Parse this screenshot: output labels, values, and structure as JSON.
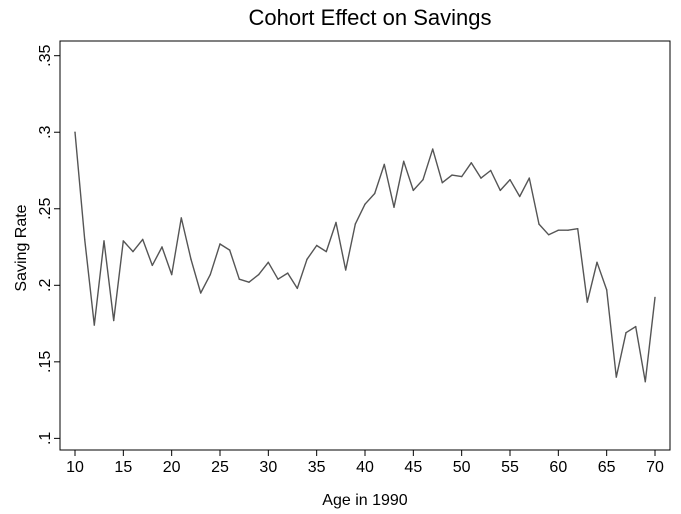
{
  "chart_data": {
    "type": "line",
    "title": "Cohort Effect on Savings",
    "xlabel": "Age in 1990",
    "ylabel": "Saving Rate",
    "xlim": [
      10,
      70
    ],
    "ylim": [
      0.1,
      0.35
    ],
    "xticks": [
      10,
      15,
      20,
      25,
      30,
      35,
      40,
      45,
      50,
      55,
      60,
      65,
      70
    ],
    "xtick_labels": [
      "10",
      "15",
      "20",
      "25",
      "30",
      "35",
      "40",
      "45",
      "50",
      "55",
      "60",
      "65",
      "70"
    ],
    "yticks": [
      0.1,
      0.15,
      0.2,
      0.25,
      0.3,
      0.35
    ],
    "ytick_labels": [
      ".1",
      ".15",
      ".2",
      ".25",
      ".3",
      ".35"
    ],
    "grid": false,
    "legend": "none",
    "line_color": "#555555",
    "x": [
      10,
      11,
      12,
      13,
      14,
      15,
      16,
      17,
      18,
      19,
      20,
      21,
      22,
      23,
      24,
      25,
      26,
      27,
      28,
      29,
      30,
      31,
      32,
      33,
      34,
      35,
      36,
      37,
      38,
      39,
      40,
      41,
      42,
      43,
      44,
      45,
      46,
      47,
      48,
      49,
      50,
      51,
      52,
      53,
      54,
      55,
      56,
      57,
      58,
      59,
      60,
      61,
      62,
      63,
      64,
      65,
      66,
      67,
      68,
      69,
      70
    ],
    "series": [
      {
        "values": [
          0.3,
          0.23,
          0.174,
          0.229,
          0.177,
          0.229,
          0.222,
          0.23,
          0.213,
          0.225,
          0.207,
          0.244,
          0.217,
          0.195,
          0.207,
          0.227,
          0.223,
          0.204,
          0.202,
          0.207,
          0.215,
          0.204,
          0.208,
          0.198,
          0.217,
          0.226,
          0.222,
          0.241,
          0.21,
          0.24,
          0.253,
          0.26,
          0.279,
          0.251,
          0.281,
          0.262,
          0.269,
          0.289,
          0.267,
          0.272,
          0.271,
          0.28,
          0.27,
          0.275,
          0.262,
          0.269,
          0.258,
          0.27,
          0.24,
          0.233,
          0.236,
          0.236,
          0.237,
          0.189,
          0.215,
          0.197,
          0.14,
          0.169,
          0.173,
          0.137,
          0.192
        ]
      }
    ]
  }
}
